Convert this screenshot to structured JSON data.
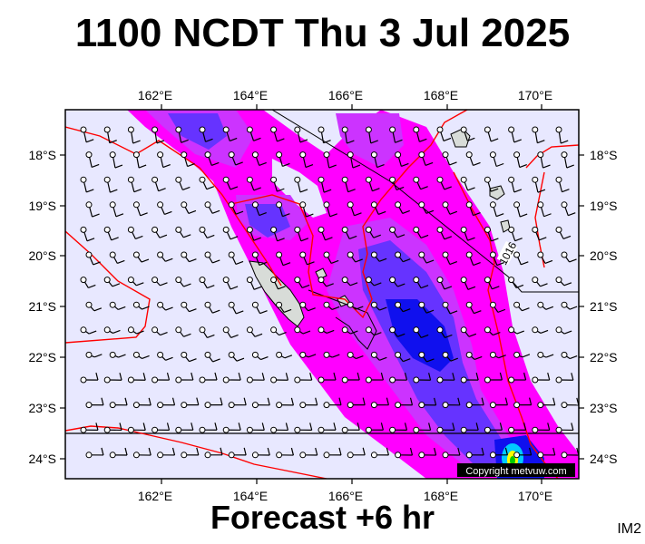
{
  "header": {
    "title": "1100 NCDT Thu 3 Jul 2025"
  },
  "footer": {
    "forecast": "Forecast +6 hr",
    "code": "IM2"
  },
  "map": {
    "copyright": "Copyright metvuw.com",
    "isobar_label": "1016",
    "lon_ticks": [
      "162°E",
      "164°E",
      "166°E",
      "168°E",
      "170°E"
    ],
    "lat_ticks": [
      "18°S",
      "19°S",
      "20°S",
      "21°S",
      "22°S",
      "23°S",
      "24°S"
    ],
    "colors": {
      "background": "#e8e8ff",
      "rain_light": "#ff00ff",
      "rain_mid": "#cc33ff",
      "rain_heavy": "#6633ff",
      "rain_very_heavy": "#1010ee",
      "isobar": "#ff0000",
      "land": "#d8dcd8"
    }
  }
}
